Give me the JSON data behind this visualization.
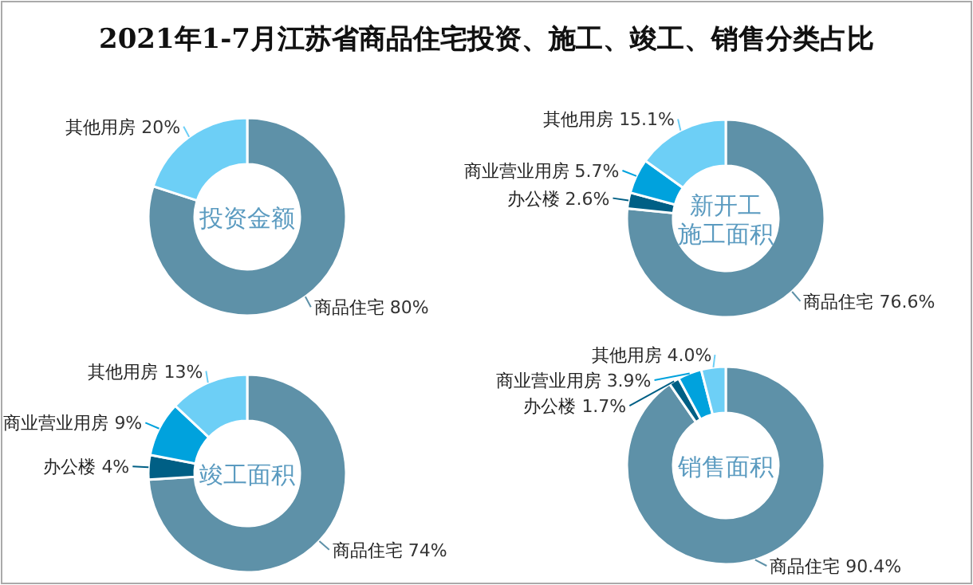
{
  "chart_data": [
    {
      "type": "donut",
      "title": "2021年1-7月江苏省商品住宅投资、施工、竣工、销售分类占比",
      "annotations": [
        "投资金额"
      ],
      "categories": [
        "商品住宅",
        "其他用房"
      ],
      "values": [
        80,
        20
      ],
      "colors": [
        "#5e91a8",
        "#6dcff6"
      ],
      "value_labels": [
        "80%",
        "20%"
      ]
    },
    {
      "type": "donut",
      "annotations": [
        "新开工",
        "施工面积"
      ],
      "categories": [
        "商品住宅",
        "办公楼",
        "商业营业用房",
        "其他用房"
      ],
      "values": [
        76.6,
        2.6,
        5.7,
        15.1
      ],
      "colors": [
        "#5e91a8",
        "#005f85",
        "#00a2dd",
        "#6dcff6"
      ],
      "value_labels": [
        "76.6%",
        "2.6%",
        "5.7%",
        "15.1%"
      ]
    },
    {
      "type": "donut",
      "annotations": [
        "竣工面积"
      ],
      "categories": [
        "商品住宅",
        "办公楼",
        "商业营业用房",
        "其他用房"
      ],
      "values": [
        74,
        4,
        9,
        13
      ],
      "colors": [
        "#5e91a8",
        "#005f85",
        "#00a2dd",
        "#6dcff6"
      ],
      "value_labels": [
        "74%",
        "4%",
        "9%",
        "13%"
      ]
    },
    {
      "type": "donut",
      "annotations": [
        "销售面积"
      ],
      "categories": [
        "商品住宅",
        "办公楼",
        "商业营业用房",
        "其他用房"
      ],
      "values": [
        90.4,
        1.7,
        3.9,
        4.0
      ],
      "colors": [
        "#5e91a8",
        "#005f85",
        "#00a2dd",
        "#6dcff6"
      ],
      "value_labels": [
        "90.4%",
        "1.7%",
        "3.9%",
        "4.0%"
      ]
    }
  ]
}
